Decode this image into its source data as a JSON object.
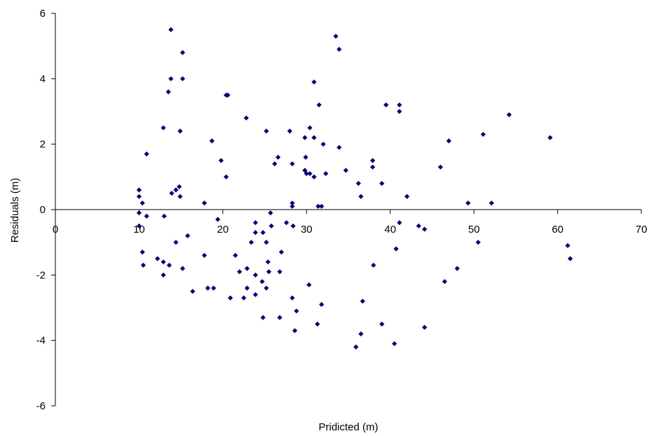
{
  "chart_data": {
    "type": "scatter",
    "title": "",
    "xlabel": "Pridicted (m)",
    "ylabel": "Residuals (m)",
    "xlim": [
      0,
      70
    ],
    "ylim": [
      -6,
      6
    ],
    "xticks": [
      0,
      10,
      20,
      30,
      40,
      50,
      60,
      70
    ],
    "yticks": [
      -6,
      -4,
      -2,
      0,
      2,
      4,
      6
    ],
    "x_tick_labels": [
      "0",
      "10",
      "20",
      "30",
      "40",
      "50",
      "60",
      "70"
    ],
    "y_tick_labels": [
      "-6",
      "-4",
      "-2",
      "0",
      "2",
      "4",
      "6"
    ],
    "grid": false,
    "legend": "none",
    "marker": "diamond",
    "marker_color": "#00007f",
    "series": [
      {
        "points": [
          [
            10.0,
            0.6
          ],
          [
            10.0,
            0.4
          ],
          [
            10.0,
            -0.1
          ],
          [
            10.0,
            -0.5
          ],
          [
            10.4,
            0.2
          ],
          [
            10.4,
            -1.3
          ],
          [
            10.5,
            -1.7
          ],
          [
            10.9,
            1.7
          ],
          [
            10.9,
            -0.2
          ],
          [
            12.2,
            -1.5
          ],
          [
            12.9,
            -1.6
          ],
          [
            12.9,
            -2.0
          ],
          [
            12.9,
            2.5
          ],
          [
            13.0,
            -0.2
          ],
          [
            13.5,
            3.6
          ],
          [
            13.6,
            -1.7
          ],
          [
            13.8,
            5.5
          ],
          [
            13.8,
            4.0
          ],
          [
            13.9,
            0.5
          ],
          [
            14.4,
            0.6
          ],
          [
            14.4,
            -1.0
          ],
          [
            14.8,
            0.7
          ],
          [
            14.9,
            2.4
          ],
          [
            14.9,
            0.4
          ],
          [
            15.2,
            4.8
          ],
          [
            15.2,
            4.0
          ],
          [
            15.2,
            -1.8
          ],
          [
            15.8,
            -0.8
          ],
          [
            16.4,
            -2.5
          ],
          [
            17.8,
            0.2
          ],
          [
            17.8,
            -1.4
          ],
          [
            18.2,
            -2.4
          ],
          [
            18.7,
            2.1
          ],
          [
            18.9,
            -2.4
          ],
          [
            19.4,
            -0.3
          ],
          [
            19.8,
            1.5
          ],
          [
            20.4,
            3.5
          ],
          [
            20.6,
            3.5
          ],
          [
            20.4,
            1.0
          ],
          [
            20.9,
            -2.7
          ],
          [
            21.5,
            -1.4
          ],
          [
            22.0,
            -1.9
          ],
          [
            22.5,
            -2.7
          ],
          [
            22.8,
            2.8
          ],
          [
            22.9,
            -1.8
          ],
          [
            22.9,
            -2.4
          ],
          [
            23.4,
            -1.0
          ],
          [
            23.9,
            -0.4
          ],
          [
            23.9,
            -0.7
          ],
          [
            23.9,
            -2.0
          ],
          [
            23.9,
            -2.6
          ],
          [
            24.7,
            -2.2
          ],
          [
            24.8,
            -0.7
          ],
          [
            24.8,
            -3.3
          ],
          [
            25.2,
            2.4
          ],
          [
            25.2,
            -1.0
          ],
          [
            25.2,
            -2.4
          ],
          [
            25.4,
            -1.6
          ],
          [
            25.5,
            -1.9
          ],
          [
            25.7,
            -0.1
          ],
          [
            25.8,
            -0.5
          ],
          [
            26.2,
            1.4
          ],
          [
            26.6,
            1.6
          ],
          [
            26.8,
            -1.9
          ],
          [
            26.8,
            -3.3
          ],
          [
            27.0,
            -1.3
          ],
          [
            27.6,
            -0.4
          ],
          [
            28.0,
            2.4
          ],
          [
            28.3,
            1.4
          ],
          [
            28.3,
            0.2
          ],
          [
            28.3,
            0.1
          ],
          [
            28.3,
            -2.7
          ],
          [
            28.4,
            -0.5
          ],
          [
            28.6,
            -3.7
          ],
          [
            28.8,
            -3.1
          ],
          [
            29.8,
            2.2
          ],
          [
            29.8,
            1.2
          ],
          [
            29.9,
            1.6
          ],
          [
            30.0,
            1.1
          ],
          [
            30.3,
            -2.3
          ],
          [
            30.4,
            2.5
          ],
          [
            30.4,
            1.1
          ],
          [
            30.9,
            3.9
          ],
          [
            30.9,
            2.2
          ],
          [
            30.9,
            1.0
          ],
          [
            31.3,
            -3.5
          ],
          [
            31.4,
            0.1
          ],
          [
            31.5,
            3.2
          ],
          [
            31.8,
            0.1
          ],
          [
            31.8,
            -2.9
          ],
          [
            32.0,
            2.0
          ],
          [
            32.3,
            1.1
          ],
          [
            33.5,
            5.3
          ],
          [
            33.9,
            4.9
          ],
          [
            33.9,
            1.9
          ],
          [
            34.7,
            1.2
          ],
          [
            35.9,
            -4.2
          ],
          [
            36.2,
            0.8
          ],
          [
            36.5,
            0.4
          ],
          [
            36.5,
            -3.8
          ],
          [
            36.7,
            -2.8
          ],
          [
            37.9,
            1.5
          ],
          [
            37.9,
            1.3
          ],
          [
            38.0,
            -1.7
          ],
          [
            39.0,
            0.8
          ],
          [
            39.0,
            -3.5
          ],
          [
            39.5,
            3.2
          ],
          [
            40.5,
            -4.1
          ],
          [
            40.7,
            -1.2
          ],
          [
            41.1,
            3.2
          ],
          [
            41.1,
            3.0
          ],
          [
            41.1,
            -0.4
          ],
          [
            42.0,
            0.4
          ],
          [
            43.4,
            -0.5
          ],
          [
            44.1,
            -0.6
          ],
          [
            44.1,
            -3.6
          ],
          [
            46.0,
            1.3
          ],
          [
            46.5,
            -2.2
          ],
          [
            47.0,
            2.1
          ],
          [
            48.0,
            -1.8
          ],
          [
            49.3,
            0.2
          ],
          [
            50.5,
            -1.0
          ],
          [
            51.1,
            2.3
          ],
          [
            52.1,
            0.2
          ],
          [
            54.2,
            2.9
          ],
          [
            59.1,
            2.2
          ],
          [
            61.2,
            -1.1
          ],
          [
            61.5,
            -1.5
          ]
        ]
      }
    ]
  }
}
